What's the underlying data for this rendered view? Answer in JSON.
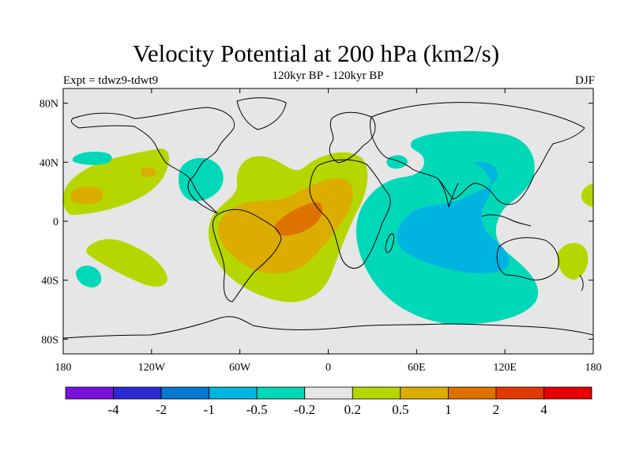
{
  "header": {
    "title": "Velocity Potential at 200 hPa (km2/s)",
    "subtitle": "120kyr BP - 120kyr BP",
    "experiment": "Expt = tdwz9-tdwt9",
    "season": "DJF"
  },
  "chart_data": {
    "type": "heatmap",
    "title": "Velocity Potential at 200 hPa (km2/s)",
    "subtitle": "120kyr BP - 120kyr BP",
    "projection": "cylindrical-equidistant",
    "lon_range": [
      -180,
      180
    ],
    "lat_range": [
      -90,
      90
    ],
    "x_ticks": [
      {
        "value": -180,
        "label": "180"
      },
      {
        "value": -120,
        "label": "120W"
      },
      {
        "value": -60,
        "label": "60W"
      },
      {
        "value": 0,
        "label": "0"
      },
      {
        "value": 60,
        "label": "60E"
      },
      {
        "value": 120,
        "label": "120E"
      },
      {
        "value": 180,
        "label": "180"
      }
    ],
    "y_ticks": [
      {
        "value": 80,
        "label": "80N"
      },
      {
        "value": 40,
        "label": "40N"
      },
      {
        "value": 0,
        "label": "0"
      },
      {
        "value": -40,
        "label": "40S"
      },
      {
        "value": -80,
        "label": "80S"
      }
    ],
    "colorbar": {
      "colors": [
        "#7b10dc",
        "#2a2ad0",
        "#0877cf",
        "#00b4e0",
        "#00d8b8",
        "#e6e6e6",
        "#b6d600",
        "#dcac00",
        "#de7200",
        "#e03a00",
        "#e60000"
      ],
      "labels": [
        "-4",
        "-2",
        "-1",
        "-0.5",
        "-0.2",
        "0.2",
        "0.5",
        "1",
        "2",
        "4"
      ]
    },
    "background_color": "#e6e6e6"
  }
}
